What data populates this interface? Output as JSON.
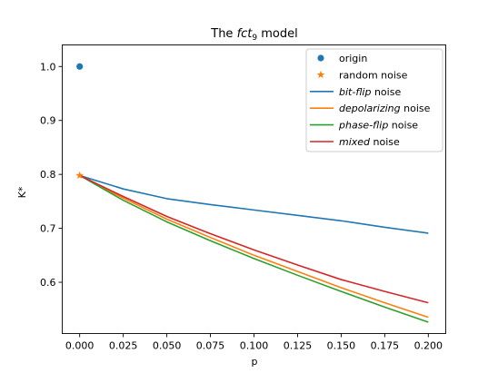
{
  "chart_data": {
    "type": "line",
    "title": {
      "pre": "The ",
      "italic": "fct",
      "sub": "9",
      "post": " model"
    },
    "xlabel": "p",
    "ylabel": "K*",
    "xlim": [
      -0.01,
      0.21
    ],
    "ylim": [
      0.505,
      1.04
    ],
    "xticks": [
      0.0,
      0.025,
      0.05,
      0.075,
      0.1,
      0.125,
      0.15,
      0.175,
      0.2
    ],
    "xtick_labels": [
      "0.000",
      "0.025",
      "0.050",
      "0.075",
      "0.100",
      "0.125",
      "0.150",
      "0.175",
      "0.200"
    ],
    "yticks": [
      0.6,
      0.7,
      0.8,
      0.9,
      1.0
    ],
    "ytick_labels": [
      "0.6",
      "0.7",
      "0.8",
      "0.9",
      "1.0"
    ],
    "grid": false,
    "legend_position": "top-right",
    "points": [
      {
        "name": "origin",
        "x": 0.0,
        "y": 1.0,
        "marker": "circle",
        "color": "#1f77b4"
      },
      {
        "name": "random noise",
        "x": 0.0,
        "y": 0.798,
        "marker": "star",
        "color": "#ff7f0e"
      }
    ],
    "x": [
      0.0,
      0.025,
      0.05,
      0.075,
      0.1,
      0.125,
      0.15,
      0.175,
      0.2
    ],
    "series": [
      {
        "name": "bit-flip",
        "label_italic": "bit-flip",
        "label_suffix": " noise",
        "color": "#1f77b4",
        "values": [
          0.798,
          0.773,
          0.755,
          0.744,
          0.734,
          0.724,
          0.714,
          0.702,
          0.691
        ]
      },
      {
        "name": "depolarizing",
        "label_italic": "depolarizing",
        "label_suffix": " noise",
        "color": "#ff7f0e",
        "values": [
          0.798,
          0.756,
          0.717,
          0.683,
          0.65,
          0.62,
          0.59,
          0.562,
          0.535
        ]
      },
      {
        "name": "phase-flip",
        "label_italic": "phase-flip",
        "label_suffix": " noise",
        "color": "#2ca02c",
        "values": [
          0.798,
          0.752,
          0.712,
          0.677,
          0.644,
          0.613,
          0.583,
          0.554,
          0.526
        ]
      },
      {
        "name": "mixed",
        "label_italic": "mixed",
        "label_suffix": " noise",
        "color": "#d62728",
        "values": [
          0.798,
          0.759,
          0.722,
          0.69,
          0.66,
          0.632,
          0.605,
          0.583,
          0.562
        ]
      }
    ]
  }
}
